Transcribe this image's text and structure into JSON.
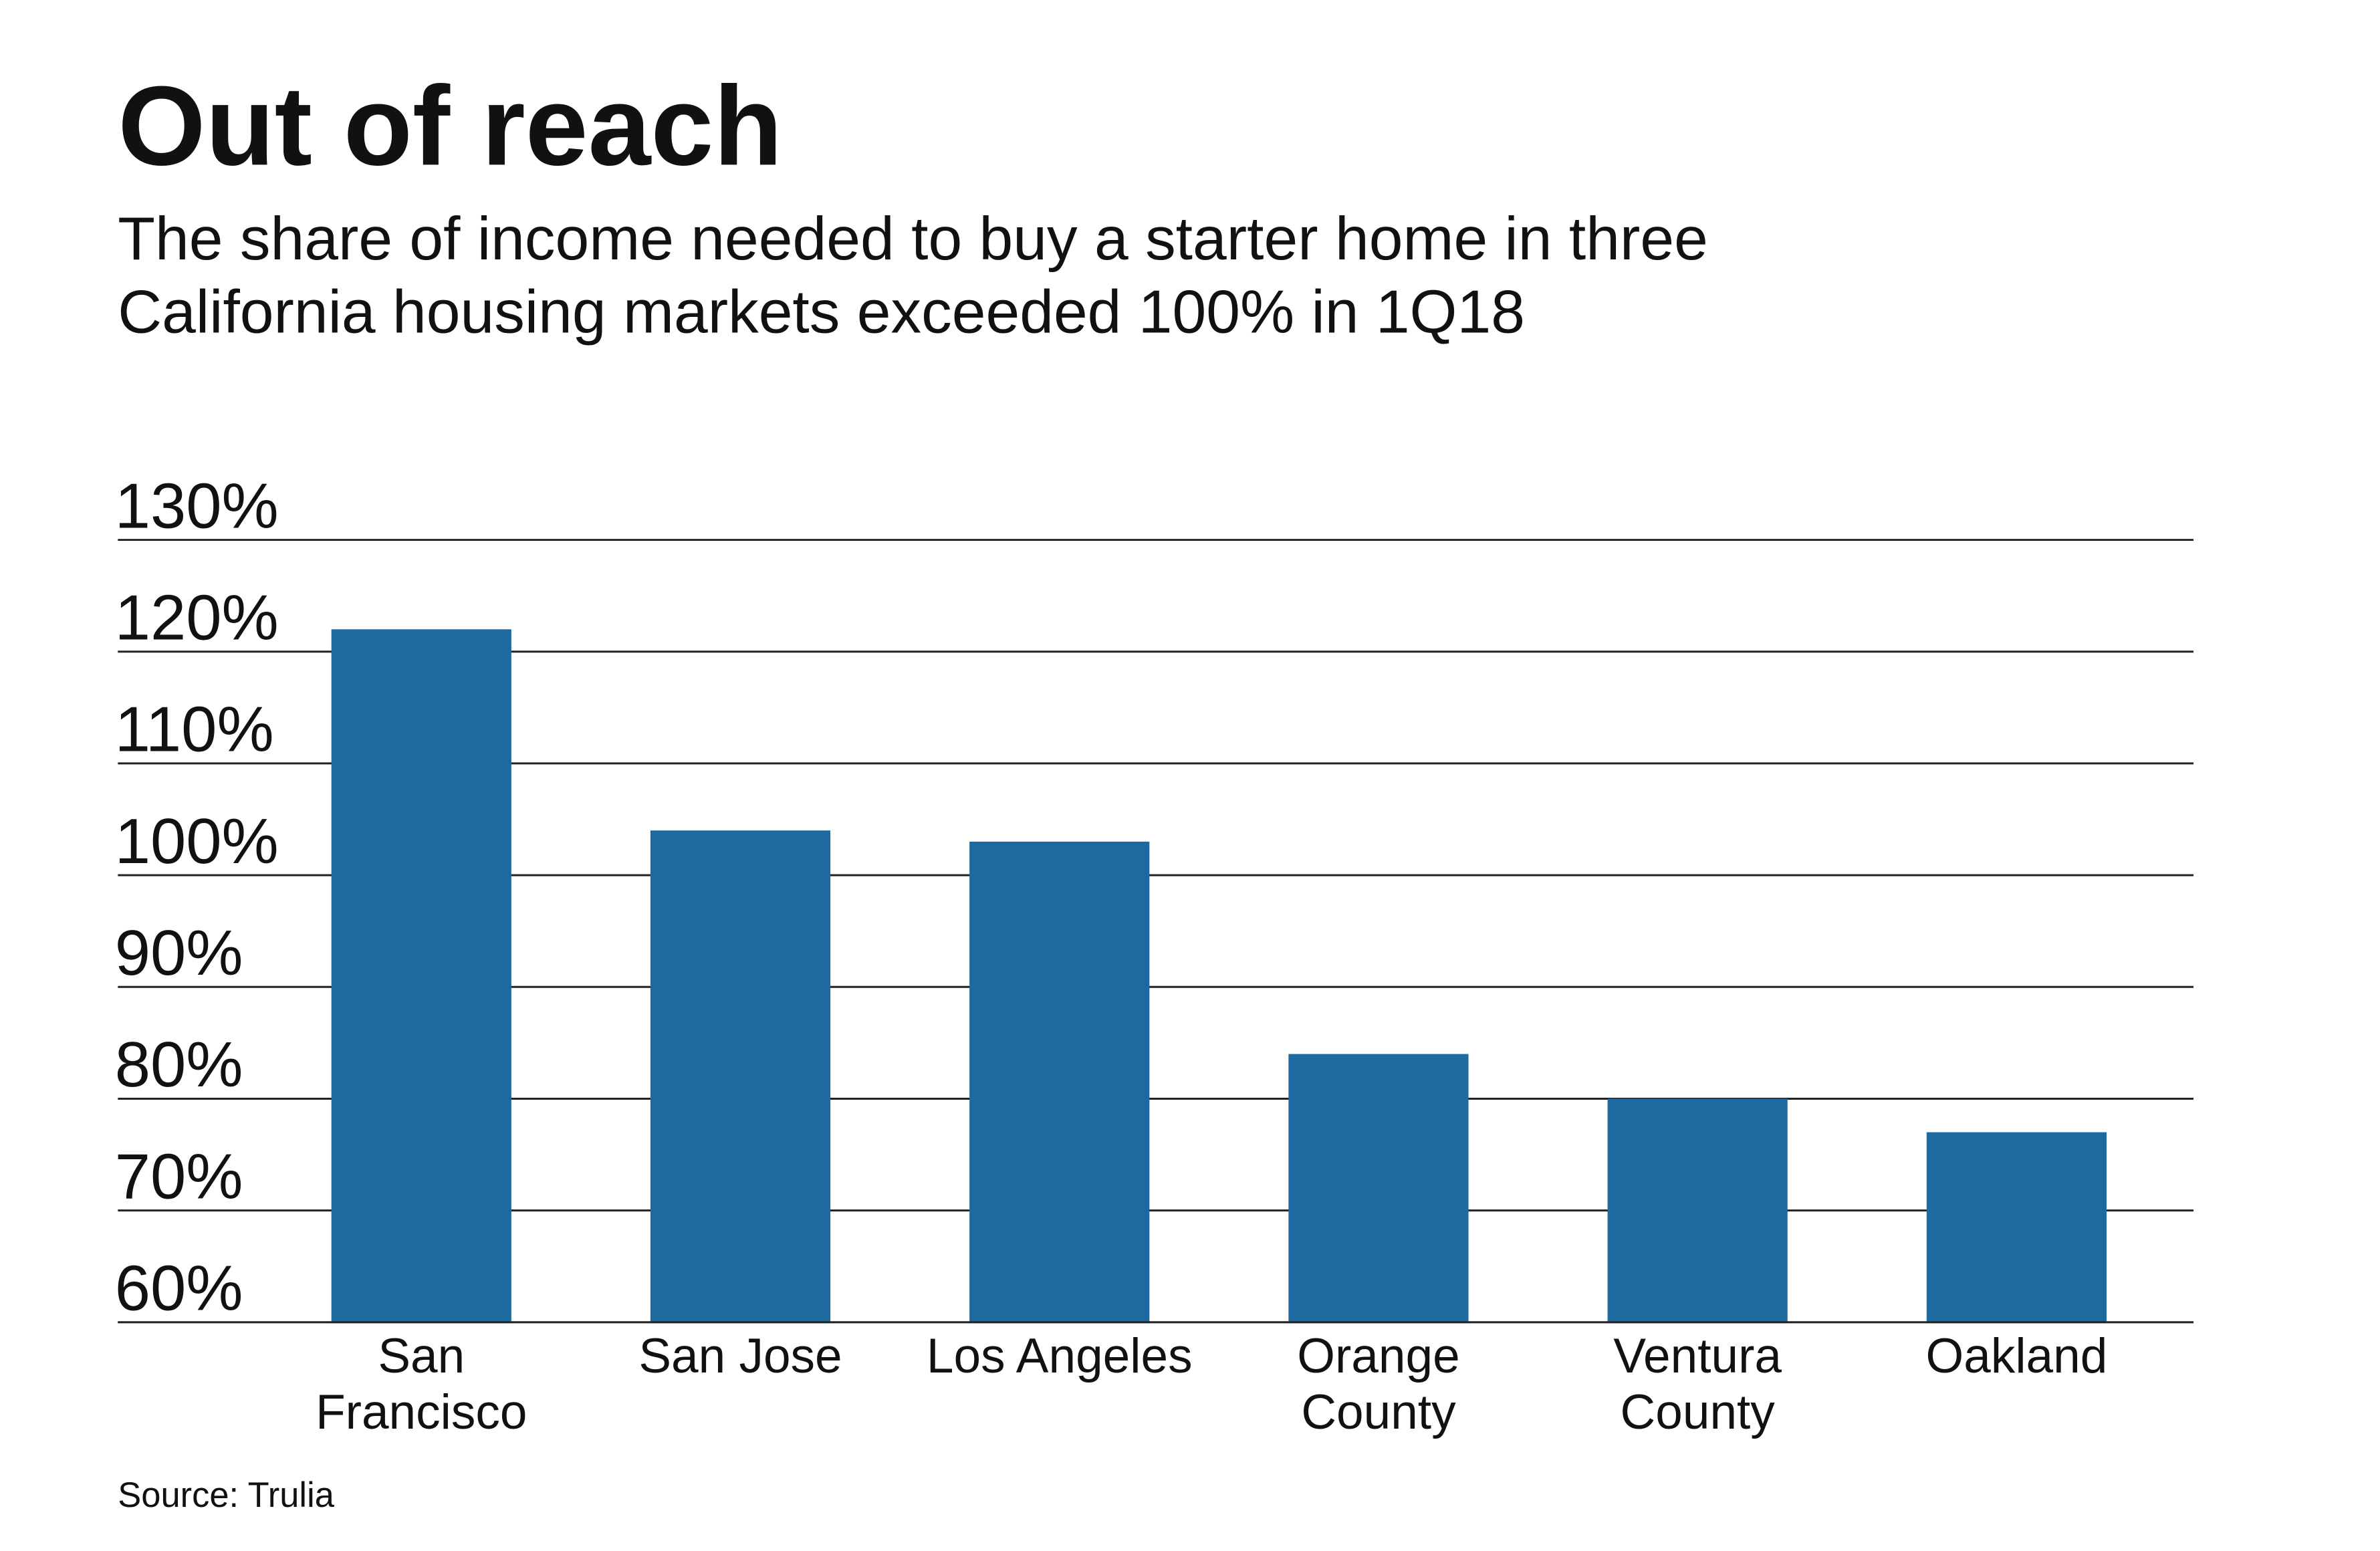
{
  "chart_data": {
    "type": "bar",
    "title": "Out of reach",
    "subtitle": "The share of income needed to buy a starter home in three\nCalifornia housing markets exceeded 100% in 1Q18",
    "categories": [
      "San\nFrancisco",
      "San Jose",
      "Los Angeles",
      "Orange\nCounty",
      "Ventura\nCounty",
      "Oakland"
    ],
    "values": [
      122,
      104,
      103,
      84,
      80,
      77
    ],
    "color": "#1c6aa0",
    "ylim": [
      60,
      130
    ],
    "yticks": [
      {
        "value": 60,
        "label": "60%"
      },
      {
        "value": 70,
        "label": "70%"
      },
      {
        "value": 80,
        "label": "80%"
      },
      {
        "value": 90,
        "label": "90%"
      },
      {
        "value": 100,
        "label": "100%"
      },
      {
        "value": 110,
        "label": "110%"
      },
      {
        "value": 120,
        "label": "120%"
      },
      {
        "value": 130,
        "label": "130%"
      }
    ],
    "grid": true,
    "source": "Source: Trulia"
  }
}
